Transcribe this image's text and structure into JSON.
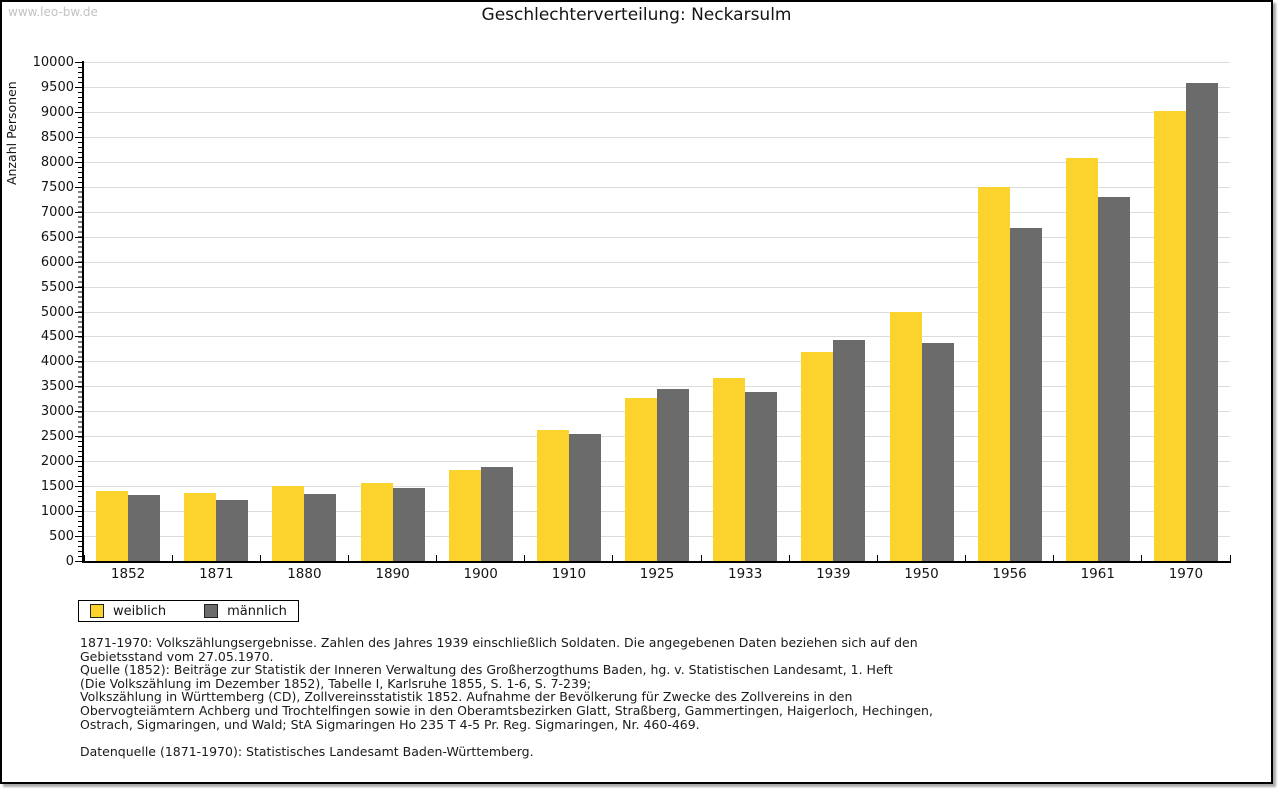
{
  "watermark": "www.leo-bw.de",
  "title": "Geschlechterverteilung: Neckarsulm",
  "chart_data": {
    "type": "bar",
    "title": "Geschlechterverteilung: Neckarsulm",
    "ylabel": "Anzahl Personen",
    "xlabel": "",
    "categories": [
      "1852",
      "1871",
      "1880",
      "1890",
      "1900",
      "1910",
      "1925",
      "1933",
      "1939",
      "1950",
      "1956",
      "1961",
      "1970"
    ],
    "series": [
      {
        "name": "weiblich",
        "color": "#FCD32D",
        "values": [
          1400,
          1370,
          1500,
          1560,
          1820,
          2630,
          3270,
          3660,
          4190,
          5000,
          7500,
          8070,
          9020
        ]
      },
      {
        "name": "männlich",
        "color": "#6B6B6B",
        "values": [
          1320,
          1220,
          1350,
          1460,
          1880,
          2550,
          3440,
          3390,
          4420,
          4360,
          6670,
          7290,
          9580
        ]
      }
    ],
    "ylim": [
      0,
      10000
    ],
    "ytick_step": 500,
    "minor_tick_step": 100,
    "y_ticks": [
      0,
      500,
      1000,
      1500,
      2000,
      2500,
      3000,
      3500,
      4000,
      4500,
      5000,
      5500,
      6000,
      6500,
      7000,
      7500,
      8000,
      8500,
      9000,
      9500,
      10000
    ],
    "grid": "horizontal",
    "legend_position": "bottom-left"
  },
  "legend": {
    "items": [
      {
        "label": "weiblich"
      },
      {
        "label": "männlich"
      }
    ]
  },
  "footer": {
    "lines": [
      "1871-1970: Volkszählungsergebnisse. Zahlen des Jahres 1939 einschließlich Soldaten. Die angegebenen Daten beziehen sich auf den",
      "Gebietsstand vom 27.05.1970.",
      "Quelle (1852): Beiträge zur Statistik der Inneren Verwaltung des Großherzogthums Baden, hg. v. Statistischen Landesamt, 1. Heft",
      "(Die Volkszählung im Dezember 1852), Tabelle I, Karlsruhe 1855, S. 1-6, S. 7-239;",
      "Volkszählung in Württemberg (CD), Zollvereinsstatistik 1852. Aufnahme der Bevölkerung für Zwecke des Zollvereins in den",
      "Obervogteiämtern Achberg und Trochtelfingen sowie in den Oberamtsbezirken Glatt, Straßberg, Gammertingen, Haigerloch, Hechingen,",
      "Ostrach, Sigmaringen, und Wald; StA Sigmaringen Ho 235 T 4-5 Pr. Reg. Sigmaringen, Nr. 460-469.",
      "",
      "Datenquelle (1871-1970): Statistisches Landesamt Baden-Württemberg."
    ]
  }
}
